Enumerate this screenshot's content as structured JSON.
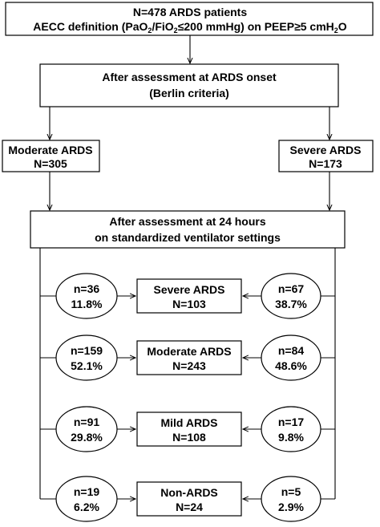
{
  "top_box": {
    "line1": "N=478 ARDS patients",
    "line2_pre": "AECC definition (PaO",
    "line2_sub1": "2",
    "line2_mid": "/FiO",
    "line2_sub2": "2",
    "line2_post": "≤200 mmHg) on PEEP≥5 cmH",
    "line2_sub3": "2",
    "line2_end": "O"
  },
  "onset_box": {
    "line1": "After assessment at ARDS onset",
    "line2": "(Berlin criteria)"
  },
  "moderate_box": {
    "line1": "Moderate ARDS",
    "line2": "N=305"
  },
  "severe_box": {
    "line1": "Severe ARDS",
    "line2": "N=173"
  },
  "h24_box": {
    "line1": "After assessment at 24 hours",
    "line2": "on standardized ventilator settings"
  },
  "rows": [
    {
      "name": "Severe ARDS",
      "total": "N=103",
      "left_n": "n=36",
      "left_pct": "11.8%",
      "right_n": "n=67",
      "right_pct": "38.7%"
    },
    {
      "name": "Moderate ARDS",
      "total": "N=243",
      "left_n": "n=159",
      "left_pct": "52.1%",
      "right_n": "n=84",
      "right_pct": "48.6%"
    },
    {
      "name": "Mild ARDS",
      "total": "N=108",
      "left_n": "n=91",
      "left_pct": "29.8%",
      "right_n": "n=17",
      "right_pct": "9.8%"
    },
    {
      "name": "Non-ARDS",
      "total": "N=24",
      "left_n": "n=19",
      "left_pct": "6.2%",
      "right_n": "n=5",
      "right_pct": "2.9%"
    }
  ]
}
